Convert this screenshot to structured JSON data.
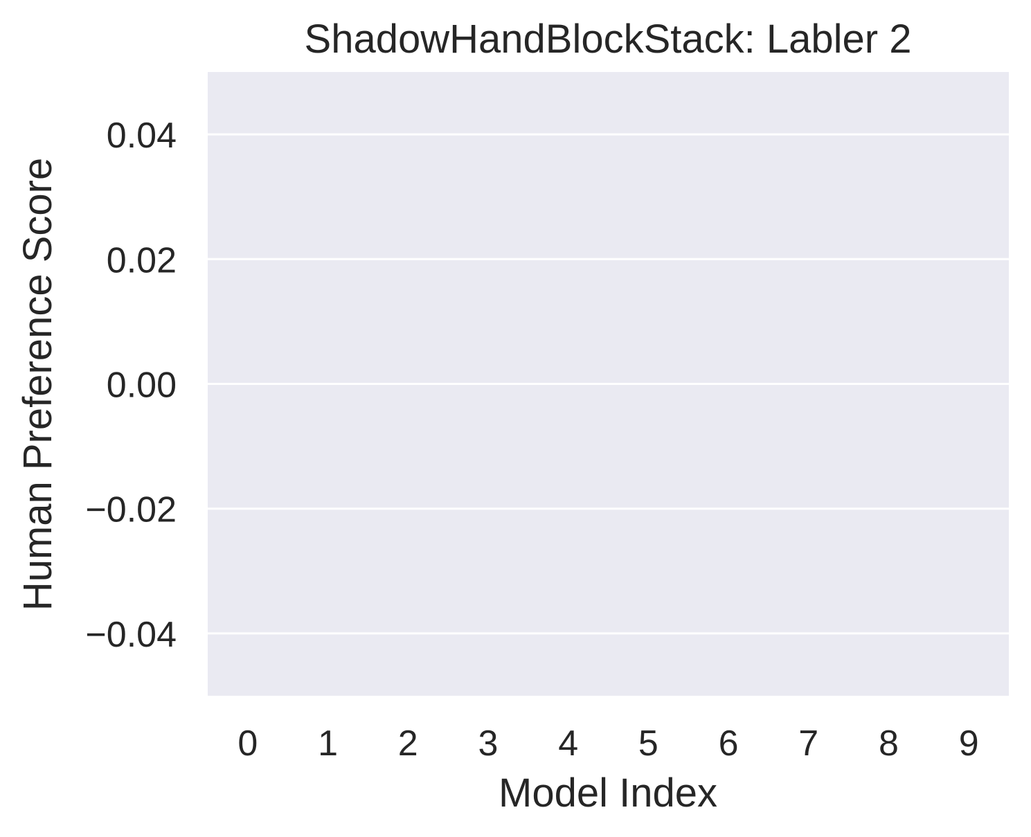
{
  "chart_data": {
    "type": "bar",
    "title": "ShadowHandBlockStack: Labler 2",
    "xlabel": "Model Index",
    "ylabel": "Human Preference Score",
    "categories": [
      "0",
      "1",
      "2",
      "3",
      "4",
      "5",
      "6",
      "7",
      "8",
      "9"
    ],
    "values": [
      0,
      0,
      0,
      0,
      0,
      0,
      0,
      0,
      0,
      0
    ],
    "ylim": [
      -0.05,
      0.05
    ],
    "yticks": [
      -0.04,
      -0.02,
      0.0,
      0.02,
      0.04
    ],
    "ytick_labels": [
      "−0.04",
      "−0.02",
      "0.00",
      "0.02",
      "0.04"
    ],
    "grid": "horizontal",
    "legend": "none",
    "colors": {
      "axes_background": "#eaeaf2",
      "grid": "#ffffff",
      "text": "#262626"
    }
  }
}
